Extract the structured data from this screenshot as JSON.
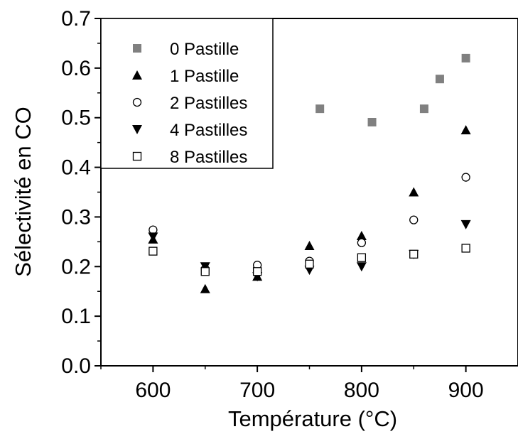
{
  "chart_data": {
    "type": "scatter",
    "xlabel": "Température (°C)",
    "ylabel": "Sélectivité en CO",
    "xlim": [
      550,
      950
    ],
    "ylim": [
      0.0,
      0.7
    ],
    "x_ticks": [
      "600",
      "700",
      "800",
      "900"
    ],
    "y_ticks": [
      "0.0",
      "0.1",
      "0.2",
      "0.3",
      "0.4",
      "0.5",
      "0.6",
      "0.7"
    ],
    "legend_position": "top-left",
    "series": [
      {
        "name": "0 Pastille",
        "marker": "square-filled",
        "color": "#808080",
        "points": [
          [
            760,
            0.518
          ],
          [
            810,
            0.491
          ],
          [
            860,
            0.518
          ],
          [
            875,
            0.578
          ],
          [
            900,
            0.62
          ]
        ]
      },
      {
        "name": "1 Pastille",
        "marker": "triangle-up-filled",
        "color": "#000000",
        "points": [
          [
            600,
            0.255
          ],
          [
            650,
            0.155
          ],
          [
            700,
            0.18
          ],
          [
            750,
            0.242
          ],
          [
            800,
            0.262
          ],
          [
            850,
            0.35
          ],
          [
            900,
            0.475
          ]
        ]
      },
      {
        "name": "2 Pastilles",
        "marker": "circle-open",
        "color": "#000000",
        "points": [
          [
            600,
            0.274
          ],
          [
            650,
            0.195
          ],
          [
            700,
            0.203
          ],
          [
            750,
            0.211
          ],
          [
            800,
            0.248
          ],
          [
            850,
            0.294
          ],
          [
            900,
            0.38
          ]
        ]
      },
      {
        "name": "4 Pastilles",
        "marker": "triangle-down-filled",
        "color": "#000000",
        "points": [
          [
            600,
            0.26
          ],
          [
            650,
            0.2
          ],
          [
            700,
            0.18
          ],
          [
            750,
            0.193
          ],
          [
            800,
            0.2
          ],
          [
            850,
            0.225
          ],
          [
            900,
            0.285
          ]
        ]
      },
      {
        "name": "8 Pastilles",
        "marker": "square-open",
        "color": "#000000",
        "points": [
          [
            600,
            0.231
          ],
          [
            650,
            0.19
          ],
          [
            700,
            0.19
          ],
          [
            750,
            0.205
          ],
          [
            800,
            0.218
          ],
          [
            850,
            0.225
          ],
          [
            900,
            0.237
          ]
        ]
      }
    ]
  }
}
